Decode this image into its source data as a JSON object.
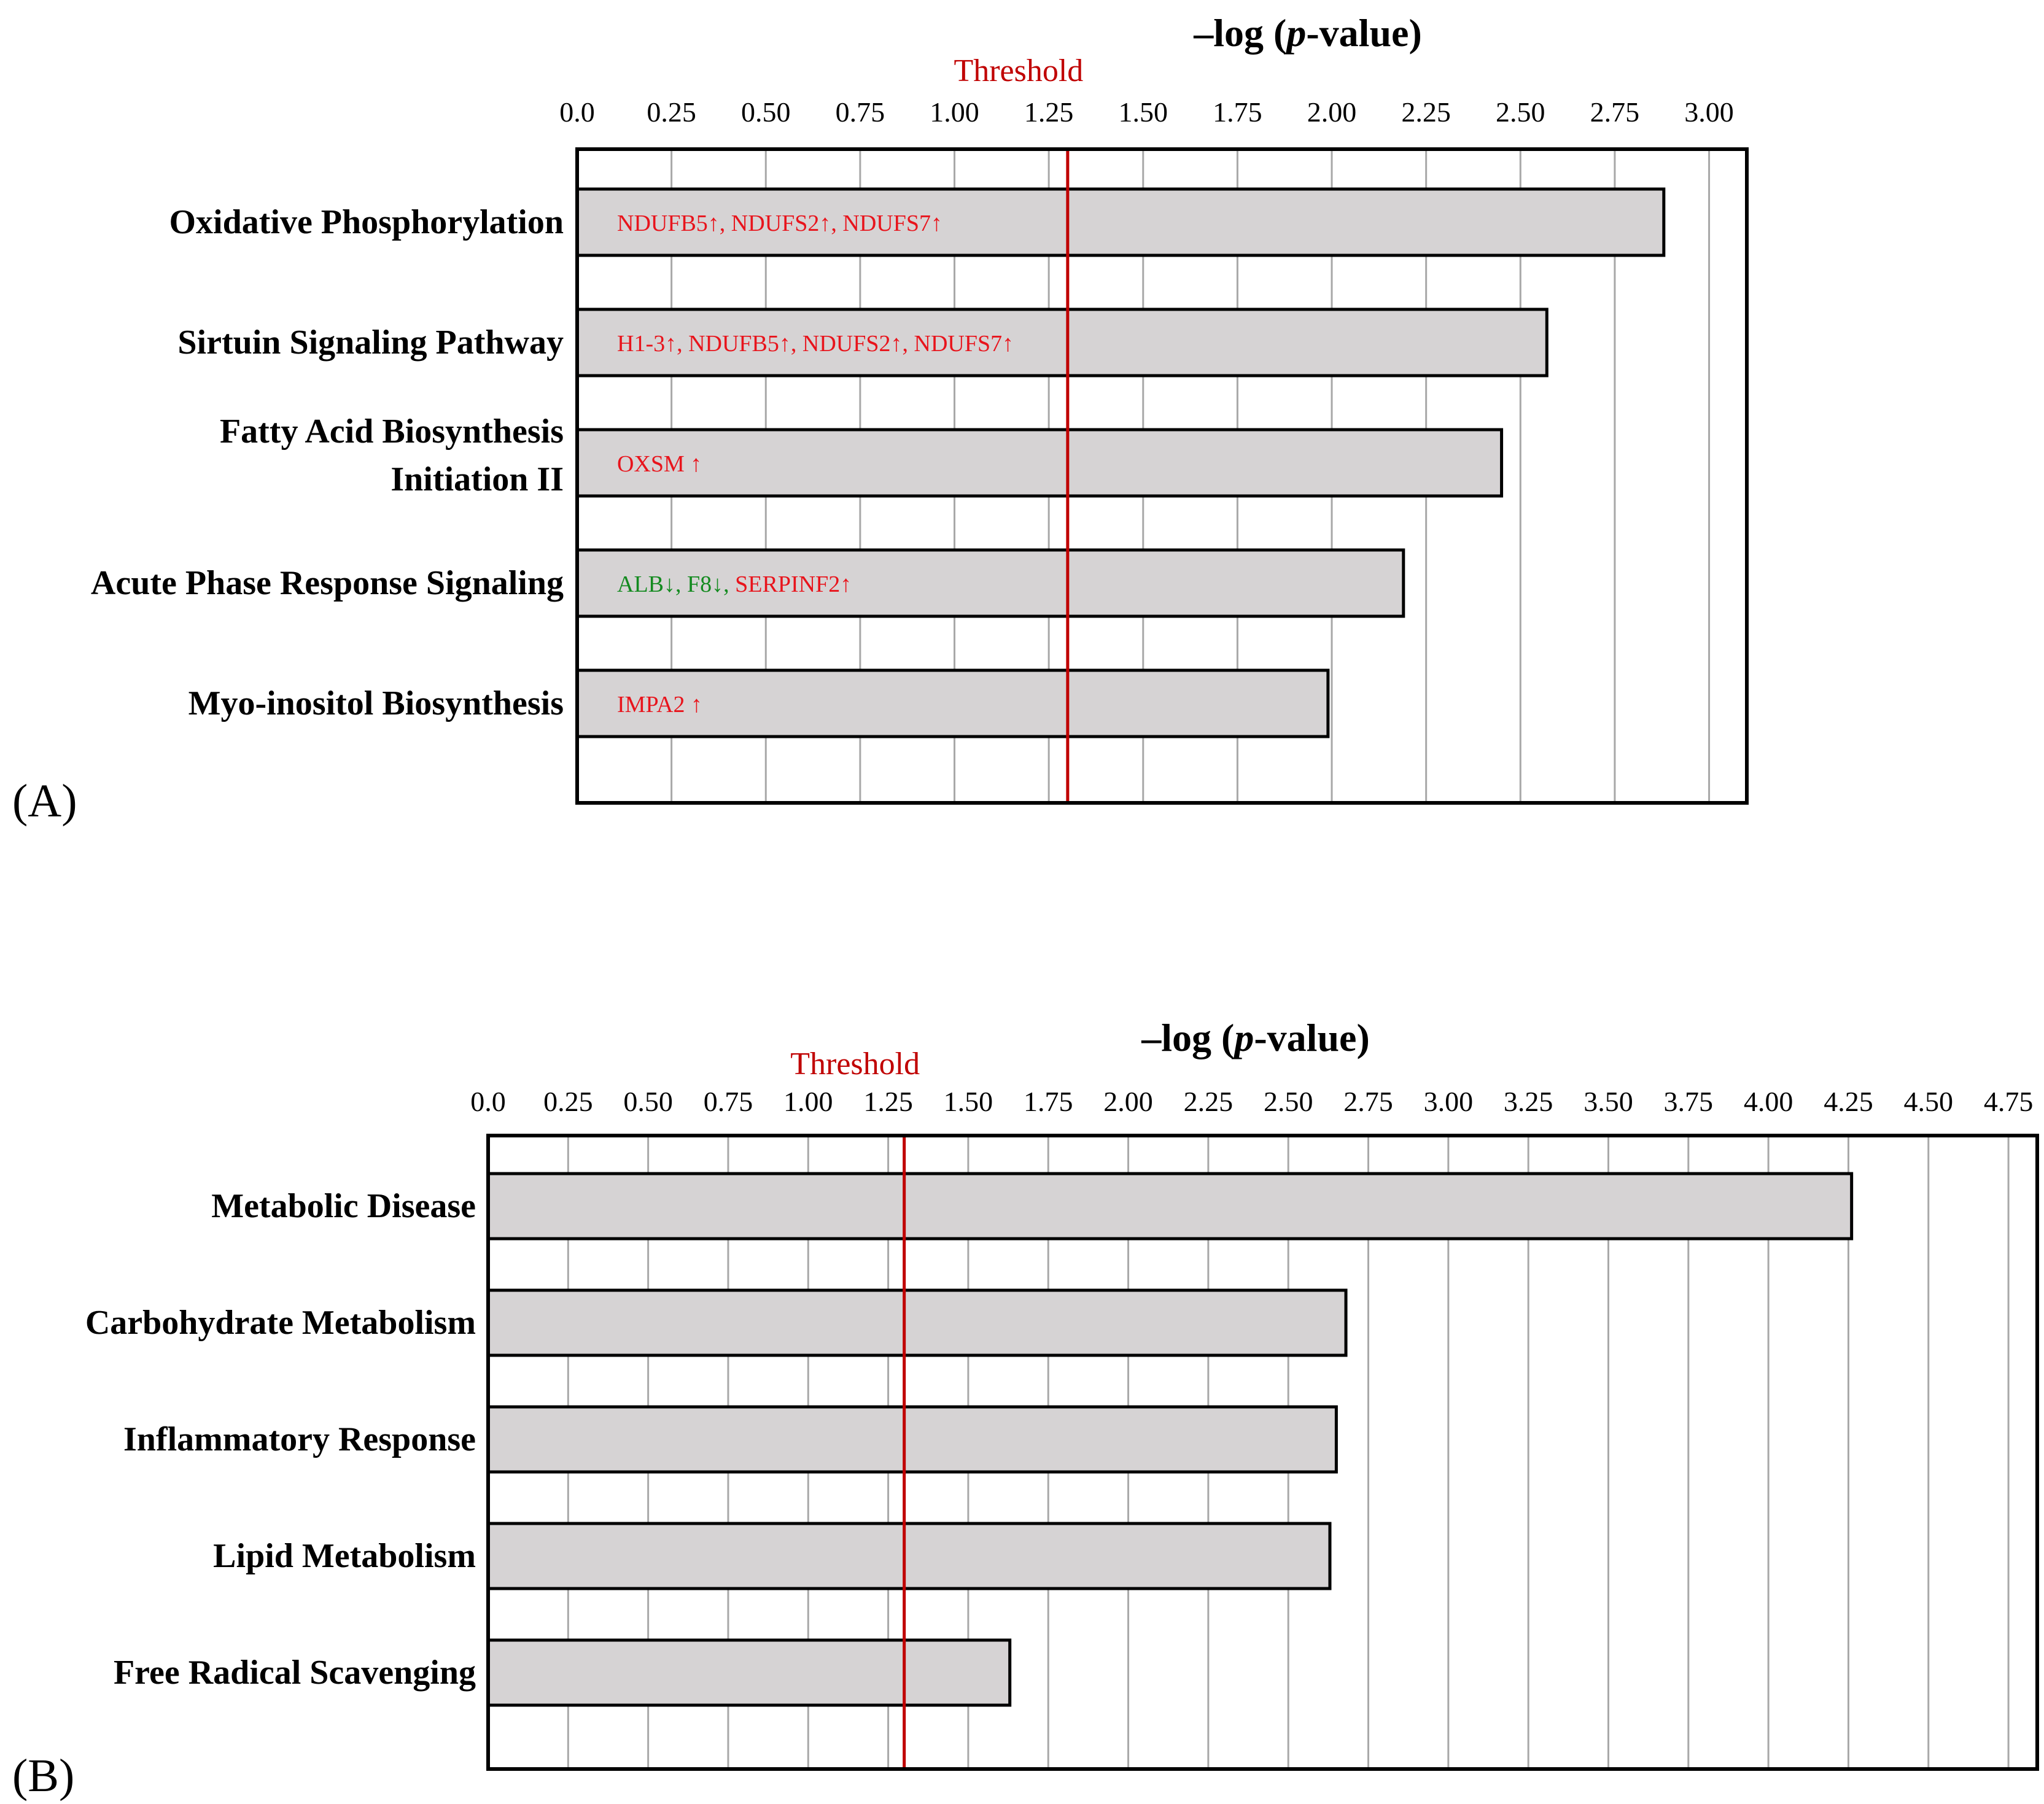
{
  "chart_data": [
    {
      "type": "bar",
      "orientation": "horizontal",
      "panel_label": "(A)",
      "axis_title_prefix": "–log (",
      "axis_title_italic": "p",
      "axis_title_suffix": "-value)",
      "threshold_label": "Threshold",
      "threshold": 1.3,
      "xlim": [
        0,
        3.1
      ],
      "tick_values": [
        0,
        0.25,
        0.5,
        0.75,
        1.0,
        1.25,
        1.5,
        1.75,
        2.0,
        2.25,
        2.5,
        2.75,
        3.0
      ],
      "tick_labels": [
        "0.0",
        "0.25",
        "0.50",
        "0.75",
        "1.00",
        "1.25",
        "1.50",
        "1.75",
        "2.00",
        "2.25",
        "2.50",
        "2.75",
        "3.00"
      ],
      "categories": [
        [
          "Oxidative Phosphorylation"
        ],
        [
          "Sirtuin Signaling Pathway"
        ],
        [
          "Fatty Acid Biosynthesis",
          "Initiation II"
        ],
        [
          "Acute Phase Response Signaling"
        ],
        [
          "Myo-inositol Biosynthesis"
        ]
      ],
      "values": [
        2.88,
        2.57,
        2.45,
        2.19,
        1.99
      ],
      "genes": [
        [
          {
            "text": "NDUFB5↑, NDUFS2↑, NDUFS7↑",
            "color": "#e8141c"
          }
        ],
        [
          {
            "text": "H1-3↑, NDUFB5↑, NDUFS2↑, NDUFS7↑",
            "color": "#e8141c"
          }
        ],
        [
          {
            "text": "OXSM ↑",
            "color": "#e8141c"
          }
        ],
        [
          {
            "text": "ALB↓, F8↓, ",
            "color": "#138a1f"
          },
          {
            "text": "SERPINF2↑",
            "color": "#e8141c"
          }
        ],
        [
          {
            "text": "IMPA2 ↑",
            "color": "#e8141c"
          }
        ]
      ],
      "bar_color": "#d6d3d4",
      "threshold_color": "#c00000"
    },
    {
      "type": "bar",
      "orientation": "horizontal",
      "panel_label": "(B)",
      "axis_title_prefix": "–log (",
      "axis_title_italic": "p",
      "axis_title_suffix": "-value)",
      "threshold_label": "Threshold",
      "threshold": 1.3,
      "xlim": [
        0,
        4.84
      ],
      "tick_values": [
        0,
        0.25,
        0.5,
        0.75,
        1.0,
        1.25,
        1.5,
        1.75,
        2.0,
        2.25,
        2.5,
        2.75,
        3.0,
        3.25,
        3.5,
        3.75,
        4.0,
        4.25,
        4.5,
        4.75
      ],
      "tick_labels": [
        "0.0",
        "0.25",
        "0.50",
        "0.75",
        "1.00",
        "1.25",
        "1.50",
        "1.75",
        "2.00",
        "2.25",
        "2.50",
        "2.75",
        "3.00",
        "3.25",
        "3.50",
        "3.75",
        "4.00",
        "4.25",
        "4.50",
        "4.75"
      ],
      "categories": [
        [
          "Metabolic Disease"
        ],
        [
          "Carbohydrate Metabolism"
        ],
        [
          "Inflammatory Response"
        ],
        [
          "Lipid Metabolism"
        ],
        [
          "Free Radical Scavenging"
        ]
      ],
      "values": [
        4.26,
        2.68,
        2.65,
        2.63,
        1.63
      ],
      "genes": [],
      "bar_color": "#d6d3d4",
      "threshold_color": "#c00000"
    }
  ]
}
